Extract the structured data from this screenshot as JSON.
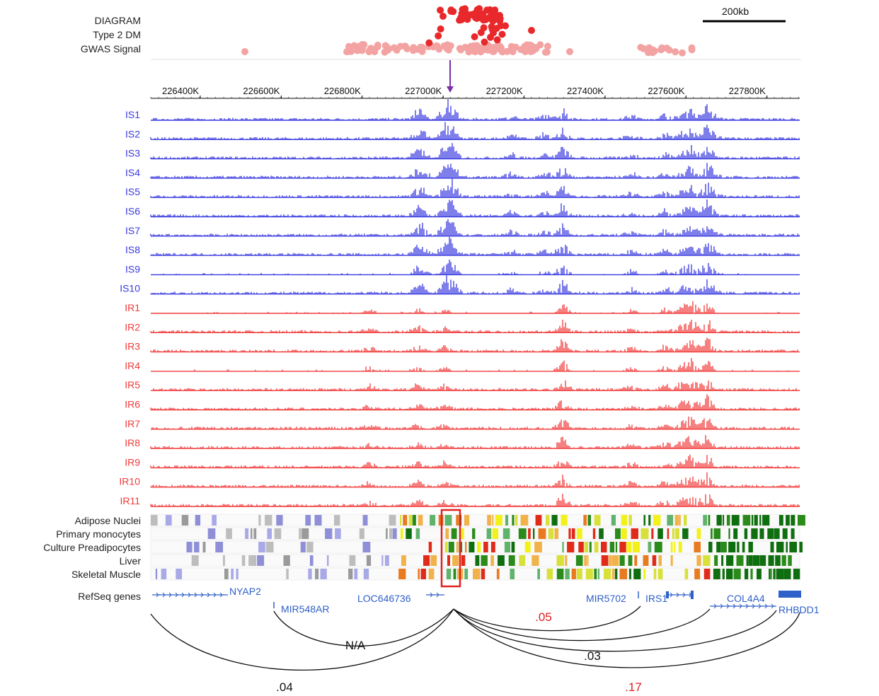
{
  "header": {
    "gwas_label_lines": [
      "DIAGRAM",
      "Type 2 DM",
      "GWAS Signal"
    ],
    "scale_bar_label": "200kb"
  },
  "axis": {
    "ticks": [
      "226400K",
      "226600K",
      "226800K",
      "227000K",
      "227200K",
      "227400K",
      "227600K",
      "227800K"
    ]
  },
  "tracks": {
    "insulin_sensitive": [
      "IS1",
      "IS2",
      "IS3",
      "IS4",
      "IS5",
      "IS6",
      "IS7",
      "IS8",
      "IS9",
      "IS10"
    ],
    "insulin_resistant": [
      "IR1",
      "IR2",
      "IR3",
      "IR4",
      "IR5",
      "IR6",
      "IR7",
      "IR8",
      "IR9",
      "IR10",
      "IR11"
    ],
    "is_color": "#3a3ae0",
    "ir_color": "#f03a3a"
  },
  "chromatin_states": {
    "tissues": [
      "Adipose Nuclei",
      "Primary monocytes",
      "Culture Preadipocytes",
      "Liver",
      "Skeletal Muscle"
    ]
  },
  "genes": {
    "track_label": "RefSeq genes",
    "names": [
      "NYAP2",
      "MIR548AR",
      "LOC646736",
      "MIR5702",
      "IRS1",
      "COL4A4",
      "RHBDD1"
    ]
  },
  "interactions": {
    "labels": [
      "N/A",
      ".04",
      ".05",
      ".03",
      ".17"
    ],
    "label_colors": [
      "#111111",
      "#111111",
      "#e02020",
      "#111111",
      "#e02020"
    ]
  },
  "colors": {
    "gwas_strong": "#e8282a",
    "gwas_weak": "#f4a3a3",
    "marker_arrow": "#7b2fa8",
    "highlight_box": "#e02020",
    "gene_blue": "#2f5fc8"
  }
}
